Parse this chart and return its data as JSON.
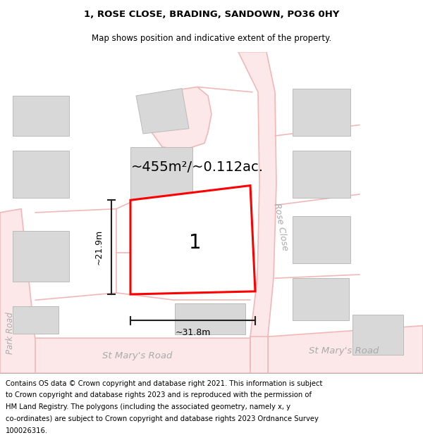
{
  "title": "1, ROSE CLOSE, BRADING, SANDOWN, PO36 0HY",
  "subtitle": "Map shows position and indicative extent of the property.",
  "footer_lines": [
    "Contains OS data © Crown copyright and database right 2021. This information is subject",
    "to Crown copyright and database rights 2023 and is reproduced with the permission of",
    "HM Land Registry. The polygons (including the associated geometry, namely x, y",
    "co-ordinates) are subject to Crown copyright and database rights 2023 Ordnance Survey",
    "100026316."
  ],
  "area_label": "~455m²/~0.112ac.",
  "width_label": "~31.8m",
  "height_label": "~21.9m",
  "plot_number": "1",
  "road_label_left": "St Mary's Road",
  "road_label_right": "St Mary's Road",
  "road_label_park": "Park Road",
  "road_label_rose": "Rose Close",
  "road_line_color": "#f0b8b8",
  "road_fill_color": "#fce8e8",
  "building_color": "#d8d8d8",
  "building_outline": "#bbbbbb",
  "plot_fill": "#ffffff",
  "plot_outline": "#ff0000",
  "dim_color": "#222222",
  "map_bg": "#ffffff",
  "title_fontsize": 9.5,
  "subtitle_fontsize": 8.5,
  "footer_fontsize": 7.2,
  "area_fontsize": 14,
  "plot_num_fontsize": 20,
  "road_label_fontsize": 9.5,
  "dim_fontsize": 9.0,
  "road_lw": 1.2
}
